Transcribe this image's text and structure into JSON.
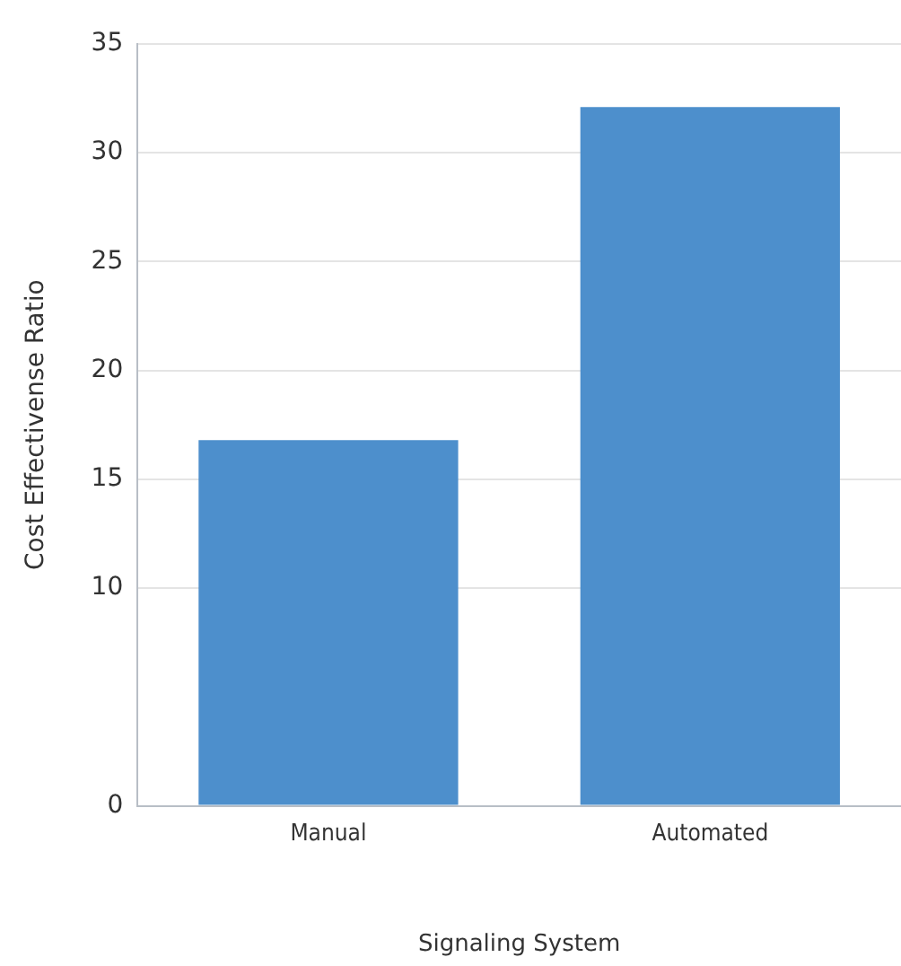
{
  "chart_data": {
    "type": "bar",
    "xlabel": "Signaling System",
    "ylabel": "Cost Effectivense Ratio",
    "categories": [
      "Manual",
      "Automated"
    ],
    "values": [
      16.8,
      32.1
    ],
    "color": "#4d8fcc",
    "ylim": [
      0,
      35
    ],
    "yticks": [
      0,
      10,
      15,
      20,
      25,
      30,
      35
    ],
    "grid": "y"
  }
}
